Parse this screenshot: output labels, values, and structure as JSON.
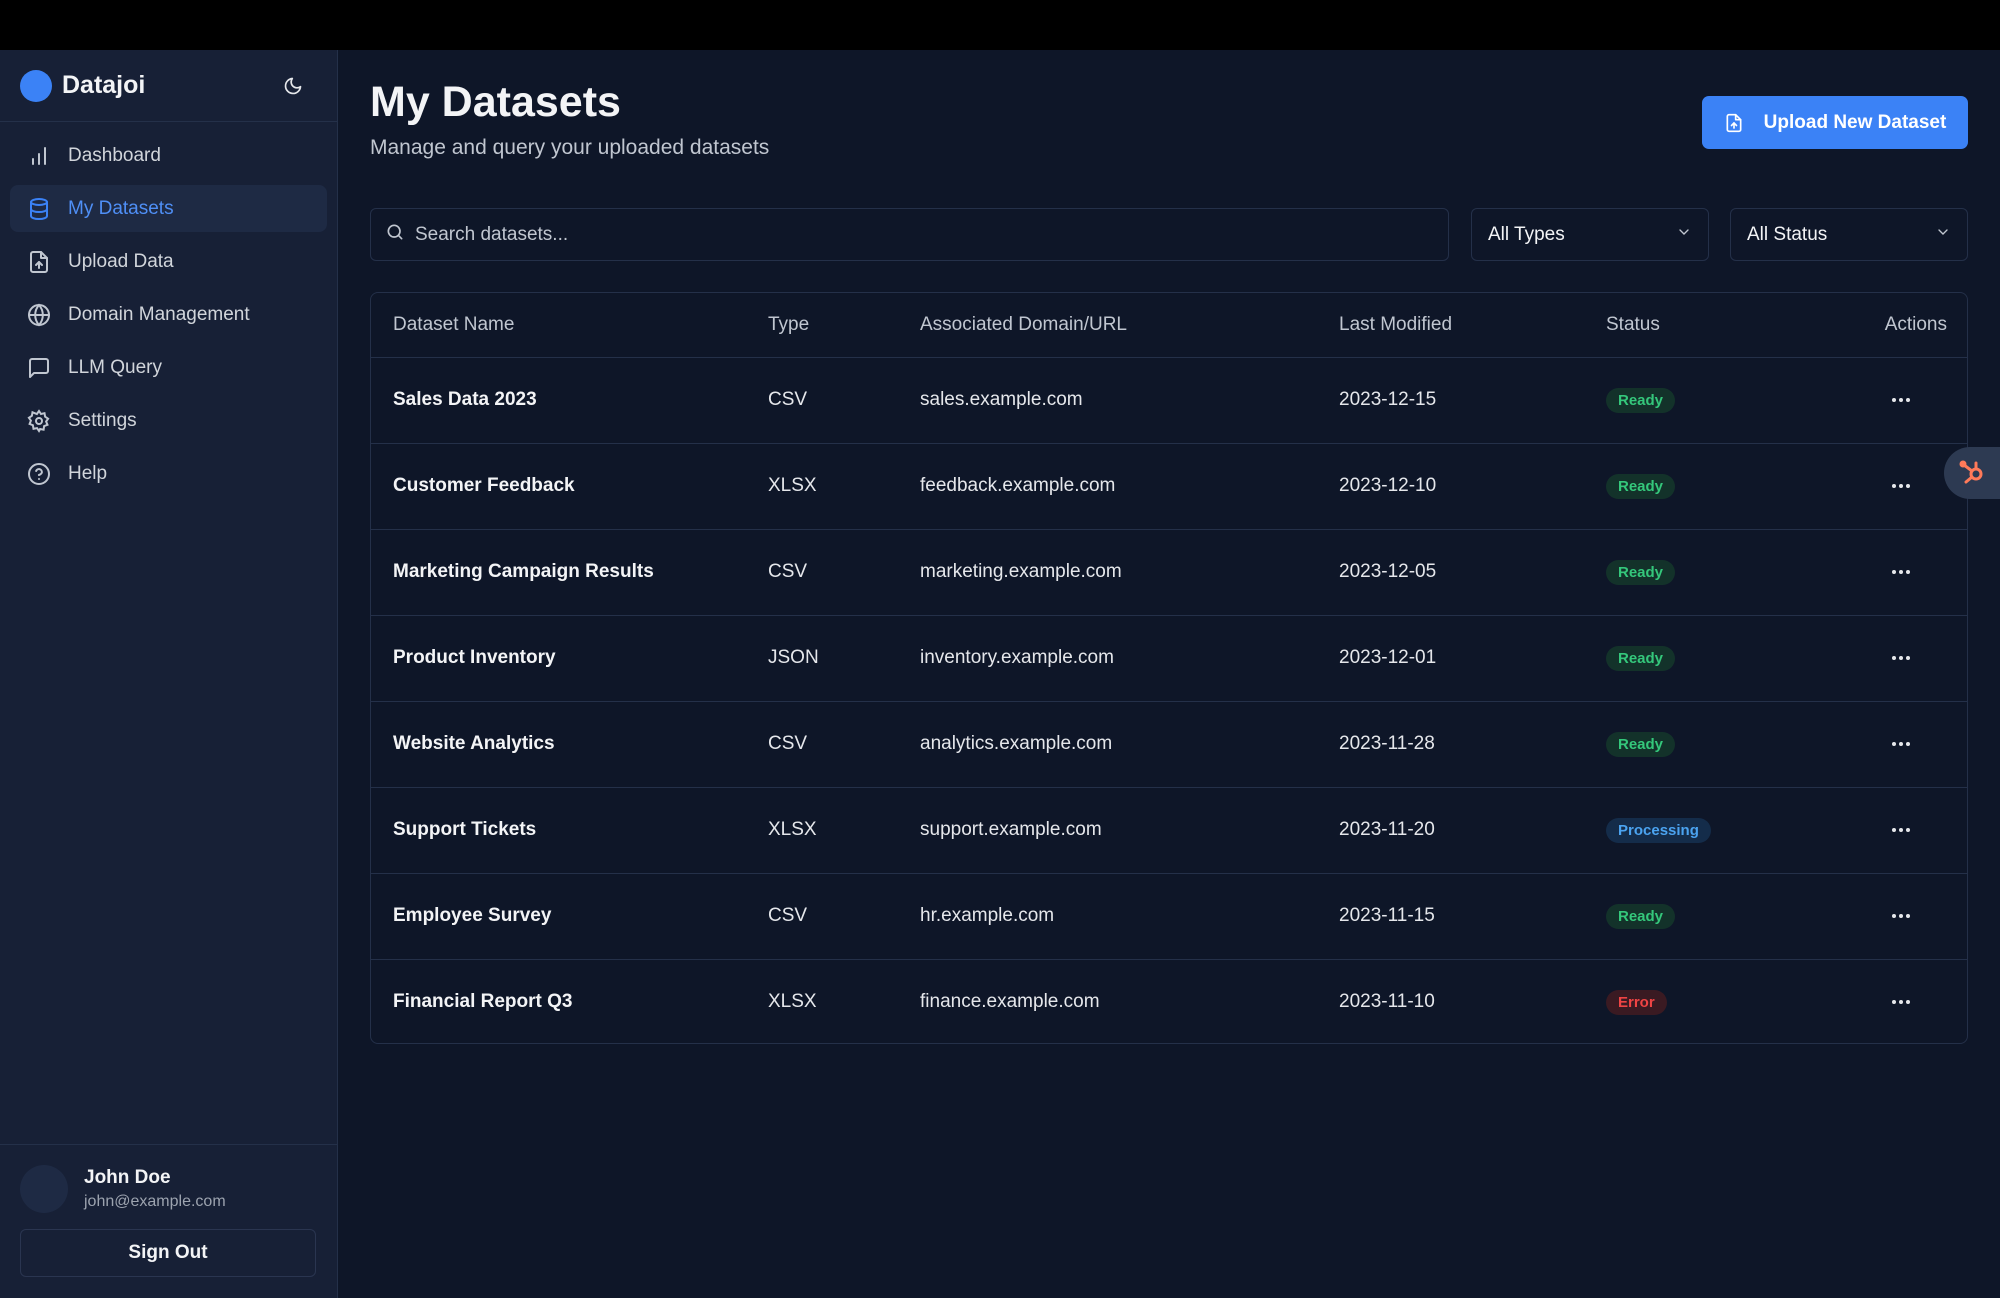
{
  "app": {
    "name": "Datajoi"
  },
  "sidebar": {
    "items": [
      {
        "label": "Dashboard",
        "icon": "bar-chart-icon",
        "active": false
      },
      {
        "label": "My Datasets",
        "icon": "database-icon",
        "active": true
      },
      {
        "label": "Upload Data",
        "icon": "file-upload-icon",
        "active": false
      },
      {
        "label": "Domain Management",
        "icon": "globe-icon",
        "active": false
      },
      {
        "label": "LLM Query",
        "icon": "chat-icon",
        "active": false
      },
      {
        "label": "Settings",
        "icon": "gear-icon",
        "active": false
      },
      {
        "label": "Help",
        "icon": "help-circle-icon",
        "active": false
      }
    ]
  },
  "user": {
    "name": "John Doe",
    "email": "john@example.com",
    "sign_out_label": "Sign Out"
  },
  "header": {
    "title": "My Datasets",
    "subtitle": "Manage and query your uploaded datasets",
    "upload_label": "Upload New Dataset"
  },
  "filters": {
    "search_placeholder": "Search datasets...",
    "type_selected": "All Types",
    "status_selected": "All Status"
  },
  "table": {
    "columns": [
      "Dataset Name",
      "Type",
      "Associated Domain/URL",
      "Last Modified",
      "Status",
      "Actions"
    ],
    "rows": [
      {
        "name": "Sales Data 2023",
        "type": "CSV",
        "domain": "sales.example.com",
        "modified": "2023-12-15",
        "status": "Ready"
      },
      {
        "name": "Customer Feedback",
        "type": "XLSX",
        "domain": "feedback.example.com",
        "modified": "2023-12-10",
        "status": "Ready"
      },
      {
        "name": "Marketing Campaign Results",
        "type": "CSV",
        "domain": "marketing.example.com",
        "modified": "2023-12-05",
        "status": "Ready"
      },
      {
        "name": "Product Inventory",
        "type": "JSON",
        "domain": "inventory.example.com",
        "modified": "2023-12-01",
        "status": "Ready"
      },
      {
        "name": "Website Analytics",
        "type": "CSV",
        "domain": "analytics.example.com",
        "modified": "2023-11-28",
        "status": "Ready"
      },
      {
        "name": "Support Tickets",
        "type": "XLSX",
        "domain": "support.example.com",
        "modified": "2023-11-20",
        "status": "Processing"
      },
      {
        "name": "Employee Survey",
        "type": "CSV",
        "domain": "hr.example.com",
        "modified": "2023-11-15",
        "status": "Ready"
      },
      {
        "name": "Financial Report Q3",
        "type": "XLSX",
        "domain": "finance.example.com",
        "modified": "2023-11-10",
        "status": "Error"
      }
    ]
  },
  "colors": {
    "accent": "#3b82f6",
    "background": "#0e1628",
    "sidebar": "#172036",
    "ready": "#34c77b",
    "processing": "#4ba3f0",
    "error": "#ef4444"
  }
}
